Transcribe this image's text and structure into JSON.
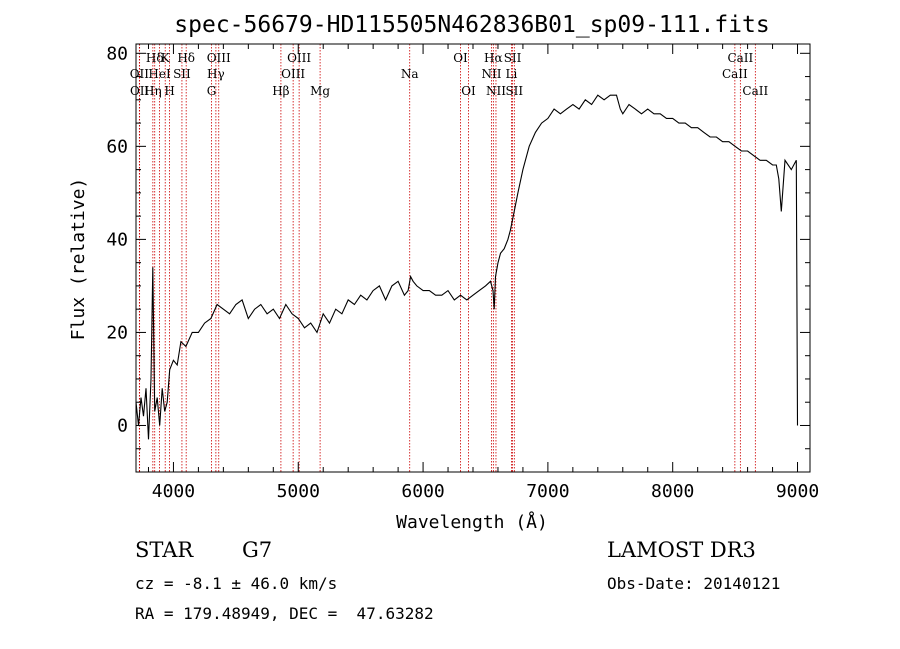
{
  "chart_data": {
    "type": "line",
    "title": "spec-56679-HD115505N462836B01_sp09-111.fits",
    "xlabel": "Wavelength (Å)",
    "ylabel": "Flux (relative)",
    "xlim": [
      3700,
      9100
    ],
    "ylim": [
      -10,
      82
    ],
    "xticks": [
      4000,
      5000,
      6000,
      7000,
      8000,
      9000
    ],
    "yticks": [
      0,
      20,
      40,
      60,
      80
    ],
    "grid": false,
    "line_color": "#000000",
    "marker_color": "#cc0000",
    "series": [
      {
        "x": [
          3700,
          3720,
          3740,
          3760,
          3780,
          3800,
          3820,
          3835,
          3850,
          3870,
          3890,
          3910,
          3930,
          3950,
          3970,
          4000,
          4030,
          4060,
          4100,
          4150,
          4200,
          4250,
          4300,
          4350,
          4400,
          4450,
          4500,
          4550,
          4600,
          4650,
          4700,
          4750,
          4800,
          4850,
          4900,
          4950,
          5000,
          5050,
          5100,
          5150,
          5200,
          5250,
          5300,
          5350,
          5400,
          5450,
          5500,
          5550,
          5600,
          5650,
          5700,
          5750,
          5800,
          5850,
          5880,
          5900,
          5920,
          5950,
          6000,
          6050,
          6100,
          6150,
          6200,
          6250,
          6300,
          6350,
          6400,
          6450,
          6500,
          6540,
          6560,
          6570,
          6580,
          6600,
          6620,
          6650,
          6680,
          6700,
          6730,
          6760,
          6800,
          6850,
          6900,
          6950,
          7000,
          7050,
          7100,
          7150,
          7200,
          7250,
          7300,
          7350,
          7400,
          7450,
          7500,
          7550,
          7580,
          7600,
          7650,
          7700,
          7750,
          7800,
          7850,
          7900,
          7950,
          8000,
          8050,
          8100,
          8150,
          8200,
          8250,
          8300,
          8350,
          8400,
          8450,
          8500,
          8550,
          8600,
          8650,
          8700,
          8750,
          8800,
          8830,
          8850,
          8870,
          8900,
          8950,
          8990,
          9000
        ],
        "y": [
          5,
          0,
          6,
          2,
          8,
          -3,
          10,
          34,
          3,
          6,
          0,
          8,
          3,
          5,
          12,
          14,
          13,
          18,
          17,
          20,
          20,
          22,
          23,
          26,
          25,
          24,
          26,
          27,
          23,
          25,
          26,
          24,
          25,
          23,
          26,
          24,
          23,
          21,
          22,
          20,
          24,
          22,
          25,
          24,
          27,
          26,
          28,
          27,
          29,
          30,
          27,
          30,
          31,
          28,
          29,
          32,
          31,
          30,
          29,
          29,
          28,
          28,
          29,
          27,
          28,
          27,
          28,
          29,
          30,
          31,
          29,
          25,
          32,
          35,
          37,
          38,
          40,
          42,
          46,
          50,
          55,
          60,
          63,
          65,
          66,
          68,
          67,
          68,
          69,
          68,
          70,
          69,
          71,
          70,
          71,
          71,
          68,
          67,
          69,
          68,
          67,
          68,
          67,
          67,
          66,
          66,
          65,
          65,
          64,
          64,
          63,
          62,
          62,
          61,
          61,
          60,
          59,
          59,
          58,
          57,
          57,
          56,
          56,
          53,
          46,
          57,
          55,
          57,
          0
        ]
      }
    ],
    "spectral_lines": [
      {
        "name": "Hδ",
        "x": 3850,
        "row": 1
      },
      {
        "name": "OII",
        "x": 3727,
        "row": 2
      },
      {
        "name": "OII",
        "x": 3729,
        "row": 3
      },
      {
        "name": "K",
        "x": 3934,
        "row": 1
      },
      {
        "name": "Hδ",
        "x": 4102,
        "row": 1
      },
      {
        "name": "HeI",
        "x": 3889,
        "row": 2
      },
      {
        "name": "SII",
        "x": 4068,
        "row": 2
      },
      {
        "name": "Hη",
        "x": 3835,
        "row": 3
      },
      {
        "name": "H",
        "x": 3969,
        "row": 3
      },
      {
        "name": "OIII",
        "x": 4363,
        "row": 1
      },
      {
        "name": "Hγ",
        "x": 4340,
        "row": 2
      },
      {
        "name": "G",
        "x": 4305,
        "row": 3
      },
      {
        "name": "OIII",
        "x": 5007,
        "row": 1
      },
      {
        "name": "OIII",
        "x": 4959,
        "row": 2
      },
      {
        "name": "Hβ",
        "x": 4861,
        "row": 3
      },
      {
        "name": "Mg",
        "x": 5175,
        "row": 3
      },
      {
        "name": "Na",
        "x": 5893,
        "row": 2
      },
      {
        "name": "OI",
        "x": 6300,
        "row": 1
      },
      {
        "name": "OI",
        "x": 6364,
        "row": 3
      },
      {
        "name": "Hα",
        "x": 6563,
        "row": 1
      },
      {
        "name": "SII",
        "x": 6717,
        "row": 1
      },
      {
        "name": "NII",
        "x": 6548,
        "row": 2
      },
      {
        "name": "Li",
        "x": 6708,
        "row": 2
      },
      {
        "name": "NII",
        "x": 6584,
        "row": 3
      },
      {
        "name": "SII",
        "x": 6731,
        "row": 3
      },
      {
        "name": "CaII",
        "x": 8542,
        "row": 1
      },
      {
        "name": "CaII",
        "x": 8498,
        "row": 2
      },
      {
        "name": "CaII",
        "x": 8662,
        "row": 3
      }
    ]
  },
  "info": {
    "object_type": "STAR",
    "subclass": "G7",
    "survey": "LAMOST DR3",
    "cz": "cz = -8.1 ± 46.0 km/s",
    "obs_date": "Obs-Date: 20140121",
    "coords": "RA = 179.48949, DEC =  47.63282"
  }
}
